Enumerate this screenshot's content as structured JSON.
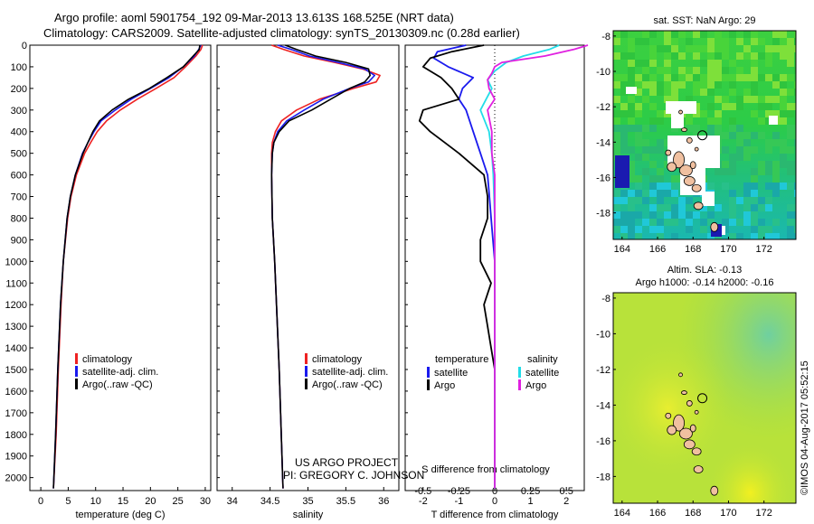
{
  "header": {
    "line1": "Argo profile: aoml 5901754_192 09-Mar-2013 13.613S 168.525E (NRT data)",
    "line2": "Climatology: CARS2009. Satellite-adjusted climatology: synTS_20130309.nc (0.28d earlier)"
  },
  "credit": {
    "project": "US ARGO PROJECT",
    "pi": "PI: GREGORY C. JOHNSON"
  },
  "imos_stamp": "©IMOS 04-Aug-2017 05:52:15",
  "colors": {
    "climatology": "#ee2222",
    "satellite": "#1a1aee",
    "argo": "#000000",
    "satellite_s": "#22dde8",
    "argo_s": "#e020e0"
  },
  "chart_data": [
    {
      "id": "temperature",
      "type": "line",
      "xlabel": "temperature (deg C)",
      "ylabel": "",
      "xlim": [
        -2,
        31
      ],
      "ylim": [
        2060,
        0
      ],
      "xticks": [
        "0",
        "5",
        "10",
        "15",
        "20",
        "25",
        "30"
      ],
      "xtick_values": [
        0,
        5,
        10,
        15,
        20,
        25,
        30
      ],
      "yticks": [
        "0",
        "100",
        "200",
        "300",
        "400",
        "500",
        "600",
        "700",
        "800",
        "900",
        "1000",
        "1100",
        "1200",
        "1300",
        "1400",
        "1500",
        "1600",
        "1700",
        "1800",
        "1900",
        "2000"
      ],
      "ytick_values": [
        0,
        100,
        200,
        300,
        400,
        500,
        600,
        700,
        800,
        900,
        1000,
        1100,
        1200,
        1300,
        1400,
        1500,
        1600,
        1700,
        1800,
        1900,
        2000
      ],
      "legend": [
        "climatology",
        "satellite-adj. clim.",
        "Argo(..raw -QC)"
      ],
      "series": [
        {
          "name": "climatology",
          "depth": [
            0,
            20,
            50,
            100,
            150,
            200,
            250,
            300,
            350,
            400,
            450,
            500,
            600,
            700,
            800,
            1000,
            1200,
            1500,
            1800,
            2050
          ],
          "values": [
            29.5,
            29.2,
            28.3,
            26.4,
            24.3,
            21.0,
            17.6,
            14.5,
            12.0,
            10.3,
            9.1,
            8.0,
            6.5,
            5.5,
            4.9,
            4.1,
            3.7,
            3.2,
            2.8,
            2.3
          ]
        },
        {
          "name": "satellite-adj. clim.",
          "depth": [
            0,
            20,
            50,
            100,
            150,
            200,
            250,
            300,
            350,
            400,
            450,
            500,
            600,
            700,
            800,
            1000,
            1200,
            1500,
            1800,
            2050
          ],
          "values": [
            29.2,
            28.8,
            28.0,
            26.0,
            23.4,
            20.0,
            16.5,
            13.6,
            11.0,
            9.7,
            8.6,
            7.6,
            6.3,
            5.4,
            4.8,
            4.1,
            3.6,
            3.1,
            2.7,
            2.3
          ]
        },
        {
          "name": "Argo(..raw -QC)",
          "depth": [
            0,
            20,
            50,
            100,
            150,
            200,
            250,
            300,
            350,
            400,
            450,
            500,
            600,
            700,
            800,
            1000,
            1200,
            1500,
            1800,
            2050
          ],
          "values": [
            29.0,
            28.9,
            27.8,
            26.0,
            23.0,
            19.8,
            16.0,
            13.0,
            10.7,
            9.5,
            8.6,
            7.7,
            6.3,
            5.4,
            4.8,
            4.1,
            3.6,
            3.1,
            2.7,
            2.3
          ]
        }
      ]
    },
    {
      "id": "salinity",
      "type": "line",
      "xlabel": "salinity",
      "xlim": [
        33.8,
        36.2
      ],
      "ylim": [
        2060,
        0
      ],
      "xticks": [
        "34",
        "34.5",
        "35",
        "35.5",
        "36"
      ],
      "xtick_values": [
        34,
        34.5,
        35,
        35.5,
        36
      ],
      "legend": [
        "climatology",
        "satellite-adj. clim.",
        "Argo(..raw -QC)"
      ],
      "series": [
        {
          "name": "climatology",
          "depth": [
            0,
            20,
            50,
            80,
            110,
            140,
            170,
            200,
            250,
            300,
            350,
            400,
            450,
            500,
            600,
            800,
            1000,
            1500,
            2050
          ],
          "values": [
            34.52,
            34.68,
            34.95,
            35.35,
            35.72,
            35.95,
            35.9,
            35.6,
            35.15,
            34.85,
            34.65,
            34.57,
            34.53,
            34.52,
            34.52,
            34.53,
            34.56,
            34.62,
            34.67
          ]
        },
        {
          "name": "satellite-adj. clim.",
          "depth": [
            0,
            20,
            50,
            80,
            110,
            140,
            170,
            200,
            250,
            300,
            350,
            400,
            450,
            500,
            600,
            800,
            1000,
            1500,
            2050
          ],
          "values": [
            34.6,
            34.78,
            35.02,
            35.4,
            35.75,
            35.88,
            35.8,
            35.55,
            35.2,
            34.95,
            34.72,
            34.6,
            34.55,
            34.53,
            34.52,
            34.53,
            34.56,
            34.62,
            34.67
          ]
        },
        {
          "name": "Argo(..raw -QC)",
          "depth": [
            0,
            20,
            50,
            80,
            110,
            140,
            170,
            200,
            250,
            300,
            350,
            400,
            450,
            500,
            600,
            800,
            1000,
            1500,
            2050
          ],
          "values": [
            34.7,
            34.85,
            35.1,
            35.5,
            35.8,
            35.82,
            35.75,
            35.55,
            35.3,
            35.05,
            34.75,
            34.62,
            34.55,
            34.53,
            34.52,
            34.53,
            34.56,
            34.62,
            34.67
          ]
        }
      ]
    },
    {
      "id": "differences",
      "type": "line",
      "xlabel": "T difference from climatology",
      "xlabel_top": "S difference from climatology",
      "xlim": [
        -2.5,
        2.5
      ],
      "ylim": [
        2060,
        0
      ],
      "xticks": [
        "-2",
        "-1",
        "0",
        "1",
        "2"
      ],
      "xtick_values": [
        -2,
        -1,
        0,
        1,
        2
      ],
      "sticks": [
        "-0.5",
        "-0.25",
        "0",
        "0.25",
        "0.5"
      ],
      "stick_values": [
        -0.5,
        -0.25,
        0,
        0.25,
        0.5
      ],
      "legend_title_t": "temperature",
      "legend_title_s": "salinity",
      "legend_t": [
        "satellite",
        "Argo"
      ],
      "legend_s": [
        "satellite",
        "Argo"
      ],
      "series": [
        {
          "name": "satellite T",
          "depth": [
            0,
            30,
            60,
            100,
            150,
            200,
            250,
            300,
            400,
            500,
            600,
            700,
            800,
            900,
            1000,
            1500,
            2050
          ],
          "values": [
            -0.8,
            -1.6,
            -1.7,
            -1.3,
            -0.6,
            -0.9,
            -1.0,
            -0.8,
            -0.6,
            -0.4,
            -0.2,
            -0.15,
            -0.1,
            -0.05,
            0,
            0,
            0
          ]
        },
        {
          "name": "Argo T",
          "depth": [
            0,
            30,
            60,
            100,
            150,
            200,
            250,
            300,
            350,
            400,
            450,
            500,
            600,
            700,
            800,
            900,
            1000,
            1100,
            1200,
            1300,
            1400,
            1500,
            1800,
            2050
          ],
          "values": [
            -0.3,
            -1.2,
            -1.8,
            -2.0,
            -1.5,
            -1.2,
            -1.0,
            -2.0,
            -2.1,
            -1.8,
            -1.4,
            -1.0,
            -0.3,
            -0.2,
            -0.2,
            -0.4,
            -0.4,
            -0.1,
            -0.3,
            -0.2,
            -0.1,
            0,
            0,
            0
          ]
        },
        {
          "name": "satellite S",
          "depth": [
            0,
            20,
            50,
            80,
            120,
            160,
            200,
            250,
            300,
            400,
            500,
            600,
            800,
            1000,
            1500,
            2050
          ],
          "values": [
            0.45,
            0.38,
            0.2,
            0.08,
            0.0,
            -0.05,
            -0.02,
            -0.06,
            -0.1,
            -0.04,
            -0.02,
            -0.01,
            0,
            0,
            0,
            0
          ]
        },
        {
          "name": "Argo S",
          "depth": [
            0,
            20,
            50,
            80,
            100,
            130,
            160,
            200,
            250,
            300,
            400,
            500,
            600,
            800,
            1000,
            1500,
            2050
          ],
          "values": [
            0.65,
            0.55,
            0.35,
            0.05,
            0.0,
            -0.02,
            -0.05,
            -0.04,
            0.0,
            -0.05,
            -0.02,
            -0.02,
            0,
            0,
            0,
            0,
            0
          ]
        }
      ]
    },
    {
      "id": "sst_map",
      "type": "heatmap",
      "title": "sat. SST: NaN Argo: 29",
      "xlim": [
        163.5,
        173.8
      ],
      "ylim": [
        -19.5,
        -7.7
      ],
      "xticks": [
        "164",
        "166",
        "168",
        "170",
        "172"
      ],
      "xtick_values": [
        164,
        166,
        168,
        170,
        172
      ],
      "yticks": [
        "-8",
        "-10",
        "-12",
        "-14",
        "-16",
        "-18"
      ],
      "ytick_values": [
        -8,
        -10,
        -12,
        -14,
        -16,
        -18
      ],
      "argo_position": {
        "lon": 168.525,
        "lat": -13.613
      }
    },
    {
      "id": "sla_map",
      "type": "heatmap",
      "title": "Altim. SLA: -0.13",
      "subtitle": "Argo h1000: -0.14 h2000: -0.16",
      "xlim": [
        163.5,
        173.8
      ],
      "ylim": [
        -19.5,
        -7.7
      ],
      "xticks": [
        "164",
        "166",
        "168",
        "170",
        "172"
      ],
      "xtick_values": [
        164,
        166,
        168,
        170,
        172
      ],
      "yticks": [
        "-8",
        "-10",
        "-12",
        "-14",
        "-16",
        "-18"
      ],
      "ytick_values": [
        -8,
        -10,
        -12,
        -14,
        -16,
        -18
      ],
      "argo_position": {
        "lon": 168.525,
        "lat": -13.613
      }
    }
  ]
}
